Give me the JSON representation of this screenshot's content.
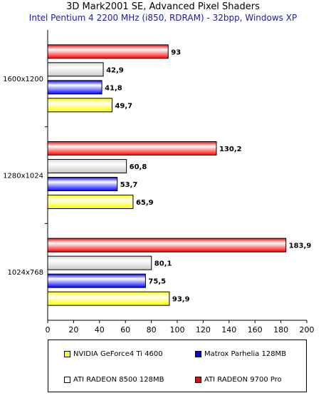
{
  "chart_data": {
    "type": "bar",
    "orientation": "horizontal",
    "title": "3D Mark2001 SE, Advanced Pixel Shaders",
    "subtitle": "Intel Pentium 4 2200 MHz (i850, RDRAM) - 32bpp, Windows XP",
    "categories": [
      "1600x1200",
      "1280x1024",
      "1024x768"
    ],
    "series": [
      {
        "name": "ATI RADEON 9700 Pro",
        "color": "#ff0000",
        "values": [
          93,
          130.2,
          183.9
        ],
        "labels": [
          "93",
          "130,2",
          "183,9"
        ]
      },
      {
        "name": "ATI RADEON 8500 128MB",
        "color": "#ffffff",
        "values": [
          42.9,
          60.8,
          80.1
        ],
        "labels": [
          "42,9",
          "60,8",
          "80,1"
        ]
      },
      {
        "name": "Matrox Parhelia 128MB",
        "color": "#0000ff",
        "values": [
          41.8,
          53.7,
          75.5
        ],
        "labels": [
          "41,8",
          "53,7",
          "75,5"
        ]
      },
      {
        "name": "NVIDIA GeForce4 Ti 4600",
        "color": "#ffff00",
        "values": [
          49.7,
          65.9,
          93.9
        ],
        "labels": [
          "49,7",
          "65,9",
          "93,9"
        ]
      }
    ],
    "xlim": [
      0,
      200
    ],
    "xticks": [
      "0",
      "20",
      "40",
      "60",
      "80",
      "100",
      "120",
      "140",
      "160",
      "180",
      "200"
    ],
    "grid": false,
    "legend_position": "bottom",
    "legend_order": [
      "NVIDIA GeForce4 Ti 4600",
      "Matrox Parhelia 128MB",
      "ATI RADEON 8500 128MB",
      "ATI RADEON 9700 Pro"
    ]
  }
}
